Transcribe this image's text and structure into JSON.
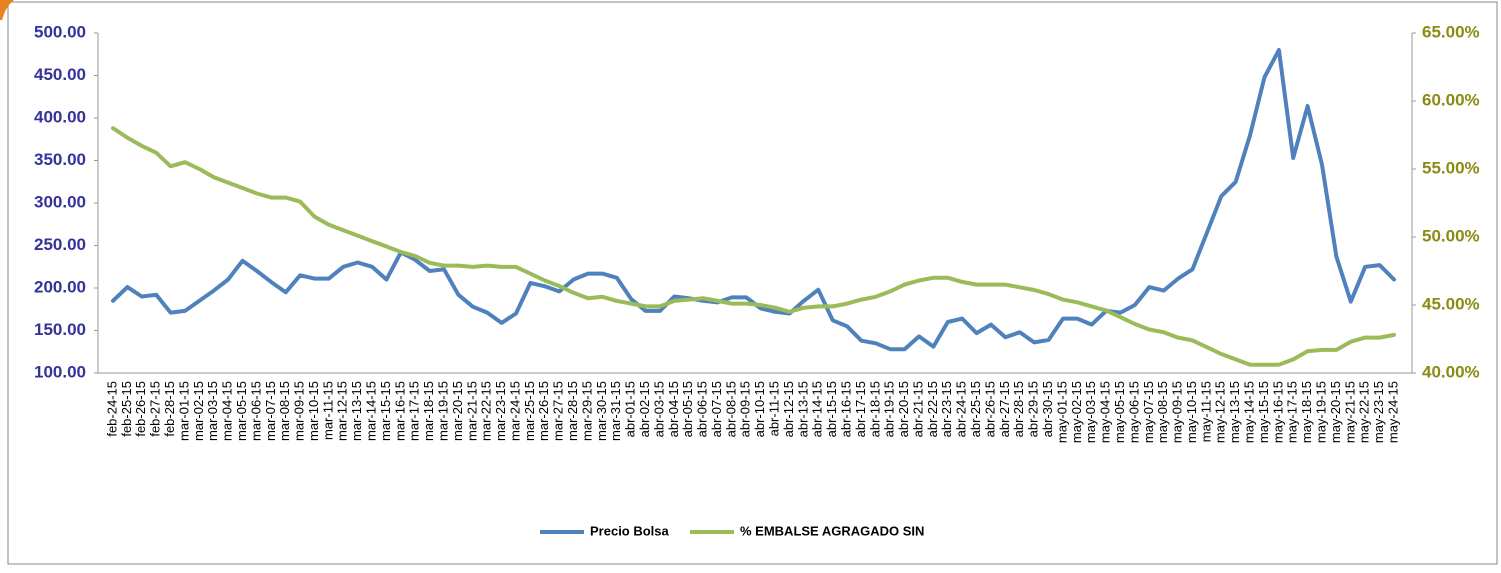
{
  "chart_data": {
    "type": "line",
    "categories": [
      "feb-24-15",
      "feb-25-15",
      "feb-26-15",
      "feb-27-15",
      "feb-28-15",
      "mar-01-15",
      "mar-02-15",
      "mar-03-15",
      "mar-04-15",
      "mar-05-15",
      "mar-06-15",
      "mar-07-15",
      "mar-08-15",
      "mar-09-15",
      "mar-10-15",
      "mar-11-15",
      "mar-12-15",
      "mar-13-15",
      "mar-14-15",
      "mar-15-15",
      "mar-16-15",
      "mar-17-15",
      "mar-18-15",
      "mar-19-15",
      "mar-20-15",
      "mar-21-15",
      "mar-22-15",
      "mar-23-15",
      "mar-24-15",
      "mar-25-15",
      "mar-26-15",
      "mar-27-15",
      "mar-28-15",
      "mar-29-15",
      "mar-30-15",
      "mar-31-15",
      "abr-01-15",
      "abr-02-15",
      "abr-03-15",
      "abr-04-15",
      "abr-05-15",
      "abr-06-15",
      "abr-07-15",
      "abr-08-15",
      "abr-09-15",
      "abr-10-15",
      "abr-11-15",
      "abr-12-15",
      "abr-13-15",
      "abr-14-15",
      "abr-15-15",
      "abr-16-15",
      "abr-17-15",
      "abr-18-15",
      "abr-19-15",
      "abr-20-15",
      "abr-21-15",
      "abr-22-15",
      "abr-23-15",
      "abr-24-15",
      "abr-25-15",
      "abr-26-15",
      "abr-27-15",
      "abr-28-15",
      "abr-29-15",
      "abr-30-15",
      "may-01-15",
      "may-02-15",
      "may-03-15",
      "may-04-15",
      "may-05-15",
      "may-06-15",
      "may-07-15",
      "may-08-15",
      "may-09-15",
      "may-10-15",
      "may-11-15",
      "may-12-15",
      "may-13-15",
      "may-14-15",
      "may-15-15",
      "may-16-15",
      "may-17-15",
      "may-18-15",
      "may-19-15",
      "may-20-15",
      "may-21-15",
      "may-22-15",
      "may-23-15",
      "may-24-15"
    ],
    "series": [
      {
        "name": "Precio Bolsa",
        "color": "#4f81bd",
        "axis": "y",
        "values": [
          185,
          201,
          190,
          192,
          171,
          173,
          185,
          197,
          210,
          232,
          220,
          207,
          195,
          215,
          211,
          211,
          225,
          230,
          225,
          210,
          242,
          233,
          220,
          222,
          192,
          178,
          171,
          159,
          170,
          206,
          202,
          196,
          210,
          217,
          217,
          212,
          187,
          173,
          173,
          190,
          188,
          185,
          183,
          189,
          189,
          176,
          172,
          170,
          185,
          198,
          162,
          155,
          138,
          135,
          128,
          128,
          143,
          131,
          160,
          164,
          147,
          157,
          142,
          148,
          136,
          139,
          164,
          164,
          157,
          173,
          171,
          180,
          201,
          197,
          211,
          222,
          265,
          308,
          325,
          380,
          448,
          480,
          353,
          414,
          345,
          237,
          184,
          225,
          227,
          210
        ]
      },
      {
        "name": "% EMBALSE AGRAGADO SIN",
        "color": "#9bbb59",
        "axis": "y2",
        "values": [
          58.0,
          57.3,
          56.7,
          56.2,
          55.2,
          55.5,
          55.0,
          54.4,
          54.0,
          53.6,
          53.2,
          52.9,
          52.9,
          52.6,
          51.5,
          50.9,
          50.5,
          50.1,
          49.7,
          49.3,
          48.9,
          48.6,
          48.1,
          47.9,
          47.9,
          47.8,
          47.9,
          47.8,
          47.8,
          47.3,
          46.8,
          46.4,
          45.9,
          45.5,
          45.6,
          45.3,
          45.1,
          44.9,
          44.9,
          45.3,
          45.4,
          45.5,
          45.3,
          45.1,
          45.1,
          45.0,
          44.8,
          44.5,
          44.8,
          44.9,
          44.9,
          45.1,
          45.4,
          45.6,
          46.0,
          46.5,
          46.8,
          47.0,
          47.0,
          46.7,
          46.5,
          46.5,
          46.5,
          46.3,
          46.1,
          45.8,
          45.4,
          45.2,
          44.9,
          44.6,
          44.1,
          43.6,
          43.2,
          43.0,
          42.6,
          42.4,
          41.9,
          41.4,
          41.0,
          40.6,
          40.6,
          40.6,
          41.0,
          41.6,
          41.7,
          41.7,
          42.3,
          42.6,
          42.6,
          42.8
        ]
      }
    ],
    "ylim": [
      100,
      500
    ],
    "yticks": [
      {
        "value": 100,
        "label": "100.00"
      },
      {
        "value": 150,
        "label": "150.00"
      },
      {
        "value": 200,
        "label": "200.00"
      },
      {
        "value": 250,
        "label": "250.00"
      },
      {
        "value": 300,
        "label": "300.00"
      },
      {
        "value": 350,
        "label": "350.00"
      },
      {
        "value": 400,
        "label": "400.00"
      },
      {
        "value": 450,
        "label": "450.00"
      },
      {
        "value": 500,
        "label": "500.00"
      }
    ],
    "y2lim": [
      40,
      65
    ],
    "y2ticks": [
      {
        "value": 40,
        "label": "40.00%"
      },
      {
        "value": 45,
        "label": "45.00%"
      },
      {
        "value": 50,
        "label": "50.00%"
      },
      {
        "value": 55,
        "label": "55.00%"
      },
      {
        "value": 60,
        "label": "60.00%"
      },
      {
        "value": 65,
        "label": "65.00%"
      }
    ],
    "grid": false,
    "legend": "bottom"
  }
}
